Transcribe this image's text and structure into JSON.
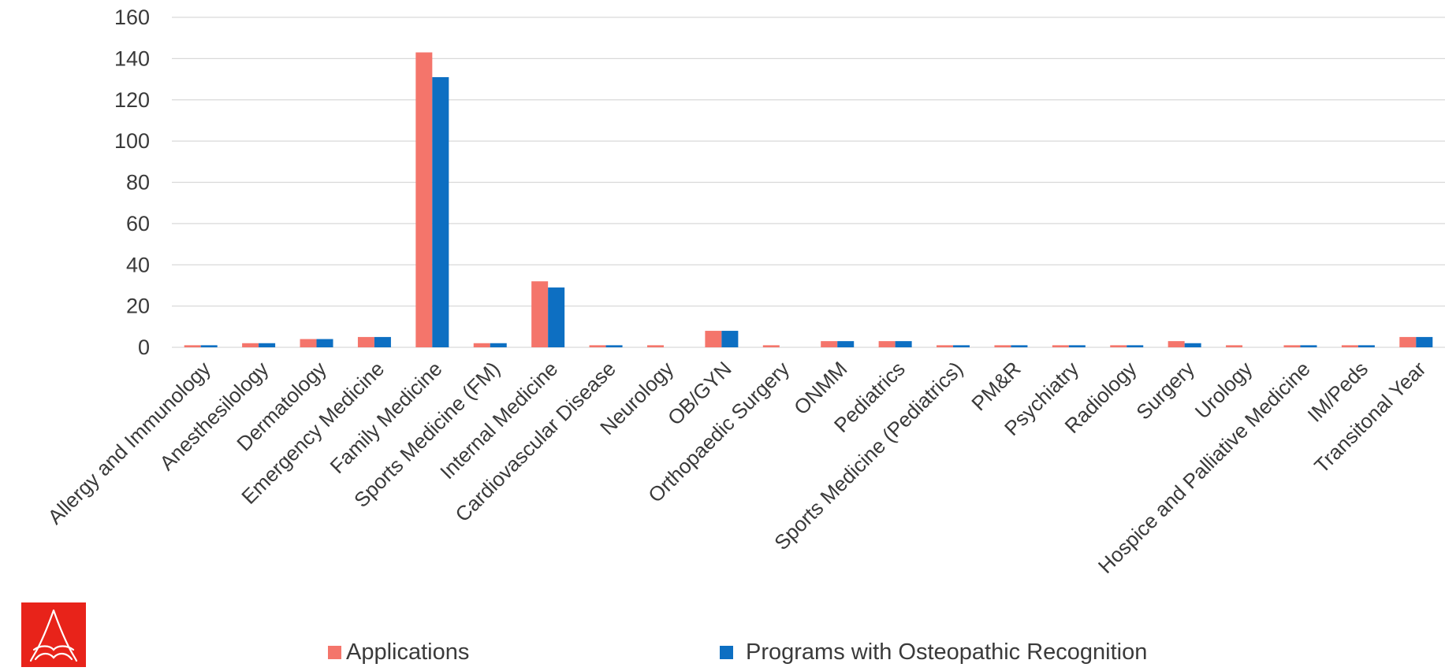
{
  "colors": {
    "applications": "#f4756b",
    "programs": "#0d6fc2",
    "grid": "#d9d9d9",
    "logo_bg": "#e8231a"
  },
  "logo": {
    "icon": "aoa-logo-icon"
  },
  "legend": [
    {
      "label": "Applications",
      "color": "#f4756b"
    },
    {
      "label": "Programs with Osteopathic Recognition",
      "color": "#0d6fc2"
    }
  ],
  "chart_data": {
    "type": "bar",
    "categories": [
      "Allergy and Immunology",
      "Anesthesilology",
      "Dermatology",
      "Emergency Medicine",
      "Family Medicine",
      "Sports Medicine (FM)",
      "Internal Medicine",
      "Cardiovascular Disease",
      "Neurology",
      "OB/GYN",
      "Orthopaedic Surgery",
      "ONMM",
      "Pediatrics",
      "Sports Medicine (Pediatrics)",
      "PM&R",
      "Psychiatry",
      "Radiology",
      "Surgery",
      "Urology",
      "Hospice and Palliative Medicine",
      "IM/Peds",
      "Transitonal Year"
    ],
    "series": [
      {
        "name": "Applications",
        "values": [
          1,
          2,
          4,
          5,
          143,
          2,
          32,
          1,
          1,
          8,
          1,
          3,
          3,
          1,
          1,
          1,
          1,
          3,
          1,
          1,
          1,
          5
        ]
      },
      {
        "name": "Programs with Osteopathic Recognition",
        "values": [
          1,
          2,
          4,
          5,
          131,
          2,
          29,
          1,
          0,
          8,
          0,
          3,
          3,
          1,
          1,
          1,
          1,
          2,
          0,
          1,
          1,
          5
        ]
      }
    ],
    "ylim": [
      0,
      160
    ],
    "yticks": [
      0,
      20,
      40,
      60,
      80,
      100,
      120,
      140,
      160
    ],
    "grid": true,
    "legend_position": "bottom"
  }
}
